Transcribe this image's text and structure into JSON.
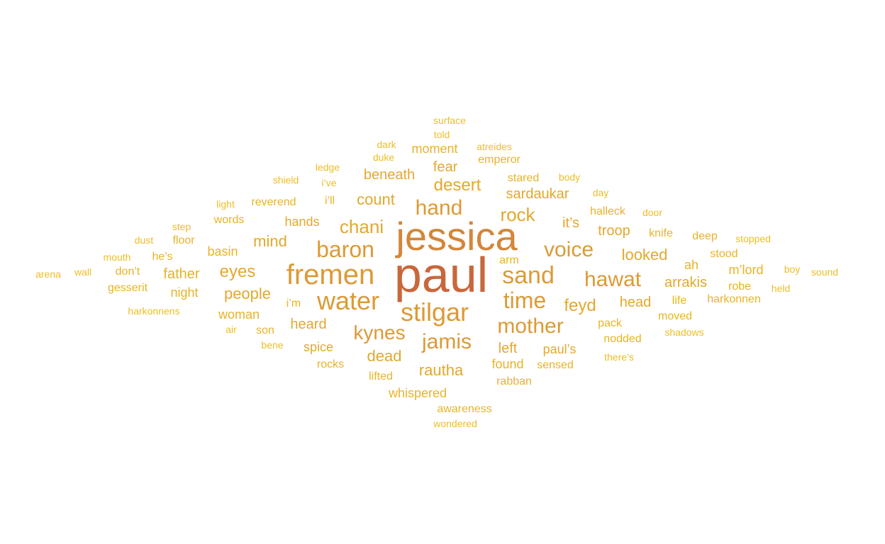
{
  "palette": {
    "c1": "#c9673c",
    "c2": "#d4863a",
    "c3": "#dc9a35",
    "c4": "#e3a82e",
    "c5": "#e8b326",
    "c6": "#edbe24"
  },
  "words": [
    {
      "text": "paul",
      "color": "c1"
    },
    {
      "text": "jessica",
      "color": "c2"
    },
    {
      "text": "fremen",
      "color": "c3"
    },
    {
      "text": "stilgar",
      "color": "c3"
    },
    {
      "text": "water",
      "color": "c3"
    },
    {
      "text": "baron",
      "color": "c3"
    },
    {
      "text": "sand",
      "color": "c3"
    },
    {
      "text": "time",
      "color": "c3"
    },
    {
      "text": "mother",
      "color": "c3"
    },
    {
      "text": "hawat",
      "color": "c3"
    },
    {
      "text": "voice",
      "color": "c3"
    },
    {
      "text": "jamis",
      "color": "c3"
    },
    {
      "text": "kynes",
      "color": "c3"
    },
    {
      "text": "hand",
      "color": "c3"
    },
    {
      "text": "rock",
      "color": "c4"
    },
    {
      "text": "desert",
      "color": "c4"
    },
    {
      "text": "chani",
      "color": "c4"
    },
    {
      "text": "eyes",
      "color": "c4"
    },
    {
      "text": "count",
      "color": "c4"
    },
    {
      "text": "rautha",
      "color": "c4"
    },
    {
      "text": "feyd",
      "color": "c4"
    },
    {
      "text": "people",
      "color": "c4"
    },
    {
      "text": "mind",
      "color": "c4"
    },
    {
      "text": "dead",
      "color": "c4"
    },
    {
      "text": "sardaukar",
      "color": "c4"
    },
    {
      "text": "looked",
      "color": "c4"
    },
    {
      "text": "troop",
      "color": "c4"
    },
    {
      "text": "arrakis",
      "color": "c4"
    },
    {
      "text": "head",
      "color": "c4"
    },
    {
      "text": "left",
      "color": "c4"
    },
    {
      "text": "heard",
      "color": "c4"
    },
    {
      "text": "it’s",
      "color": "c4"
    },
    {
      "text": "beneath",
      "color": "c4"
    },
    {
      "text": "fear",
      "color": "c4"
    },
    {
      "text": "paul’s",
      "color": "c4"
    },
    {
      "text": "spice",
      "color": "c4"
    },
    {
      "text": "hands",
      "color": "c4"
    },
    {
      "text": "father",
      "color": "c5"
    },
    {
      "text": "basin",
      "color": "c5"
    },
    {
      "text": "found",
      "color": "c5"
    },
    {
      "text": "woman",
      "color": "c5"
    },
    {
      "text": "moment",
      "color": "c5"
    },
    {
      "text": "whispered",
      "color": "c5"
    },
    {
      "text": "nodded",
      "color": "c5"
    },
    {
      "text": "m’lord",
      "color": "c5"
    },
    {
      "text": "stood",
      "color": "c5"
    },
    {
      "text": "reverend",
      "color": "c5"
    },
    {
      "text": "night",
      "color": "c5"
    },
    {
      "text": "ah",
      "color": "c5"
    },
    {
      "text": "moved",
      "color": "c5"
    },
    {
      "text": "pack",
      "color": "c5"
    },
    {
      "text": "stared",
      "color": "c5"
    },
    {
      "text": "halleck",
      "color": "c5"
    },
    {
      "text": "rocks",
      "color": "c5"
    },
    {
      "text": "lifted",
      "color": "c5"
    },
    {
      "text": "don’t",
      "color": "c5"
    },
    {
      "text": "words",
      "color": "c5"
    },
    {
      "text": "i’ll",
      "color": "c5"
    },
    {
      "text": "rabban",
      "color": "c5"
    },
    {
      "text": "awareness",
      "color": "c5"
    },
    {
      "text": "arm",
      "color": "c5"
    },
    {
      "text": "sensed",
      "color": "c5"
    },
    {
      "text": "life",
      "color": "c5"
    },
    {
      "text": "knife",
      "color": "c5"
    },
    {
      "text": "deep",
      "color": "c5"
    },
    {
      "text": "he’s",
      "color": "c5"
    },
    {
      "text": "son",
      "color": "c5"
    },
    {
      "text": "gesserit",
      "color": "c5"
    },
    {
      "text": "i’m",
      "color": "c5"
    },
    {
      "text": "robe",
      "color": "c5"
    },
    {
      "text": "harkonnen",
      "color": "c5"
    },
    {
      "text": "emperor",
      "color": "c5"
    },
    {
      "text": "floor",
      "color": "c5"
    },
    {
      "text": "stopped",
      "color": "c6"
    },
    {
      "text": "atreides",
      "color": "c6"
    },
    {
      "text": "surface",
      "color": "c6"
    },
    {
      "text": "told",
      "color": "c6"
    },
    {
      "text": "duke",
      "color": "c6"
    },
    {
      "text": "dark",
      "color": "c6"
    },
    {
      "text": "ledge",
      "color": "c6"
    },
    {
      "text": "i’ve",
      "color": "c6"
    },
    {
      "text": "shield",
      "color": "c6"
    },
    {
      "text": "body",
      "color": "c6"
    },
    {
      "text": "day",
      "color": "c6"
    },
    {
      "text": "door",
      "color": "c6"
    },
    {
      "text": "light",
      "color": "c6"
    },
    {
      "text": "step",
      "color": "c6"
    },
    {
      "text": "dust",
      "color": "c6"
    },
    {
      "text": "mouth",
      "color": "c6"
    },
    {
      "text": "wall",
      "color": "c6"
    },
    {
      "text": "arena",
      "color": "c6"
    },
    {
      "text": "harkonnens",
      "color": "c6"
    },
    {
      "text": "air",
      "color": "c6"
    },
    {
      "text": "bene",
      "color": "c6"
    },
    {
      "text": "shadows",
      "color": "c6"
    },
    {
      "text": "there’s",
      "color": "c6"
    },
    {
      "text": "boy",
      "color": "c6"
    },
    {
      "text": "held",
      "color": "c6"
    },
    {
      "text": "sound",
      "color": "c6"
    },
    {
      "text": "wondered",
      "color": "c6"
    }
  ]
}
